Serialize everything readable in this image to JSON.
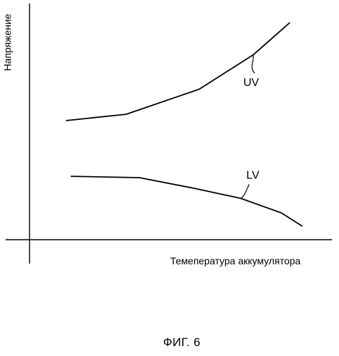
{
  "chart_data": {
    "type": "line",
    "ylabel": "Напряжение",
    "xlabel": "Темепература аккумулятора",
    "caption": "ФИГ. 6",
    "axis_ticks": false,
    "grid": false,
    "xlim": [
      0,
      100
    ],
    "ylim": [
      0,
      100
    ],
    "series": [
      {
        "name": "UV",
        "color": "#000000",
        "x": [
          12.5,
          32.7,
          57.4,
          75.7,
          88.0
        ],
        "y": [
          52.8,
          55.6,
          66.7,
          81.9,
          96.1
        ]
      },
      {
        "name": "LV",
        "color": "#000000",
        "x": [
          14.1,
          37.2,
          55.6,
          71.5,
          85.2,
          92.2
        ],
        "y": [
          28.1,
          27.5,
          22.8,
          18.3,
          11.9,
          6.1
        ]
      }
    ],
    "annotations": [
      {
        "text": "UV",
        "series": "UV"
      },
      {
        "text": "LV",
        "series": "LV"
      }
    ]
  }
}
